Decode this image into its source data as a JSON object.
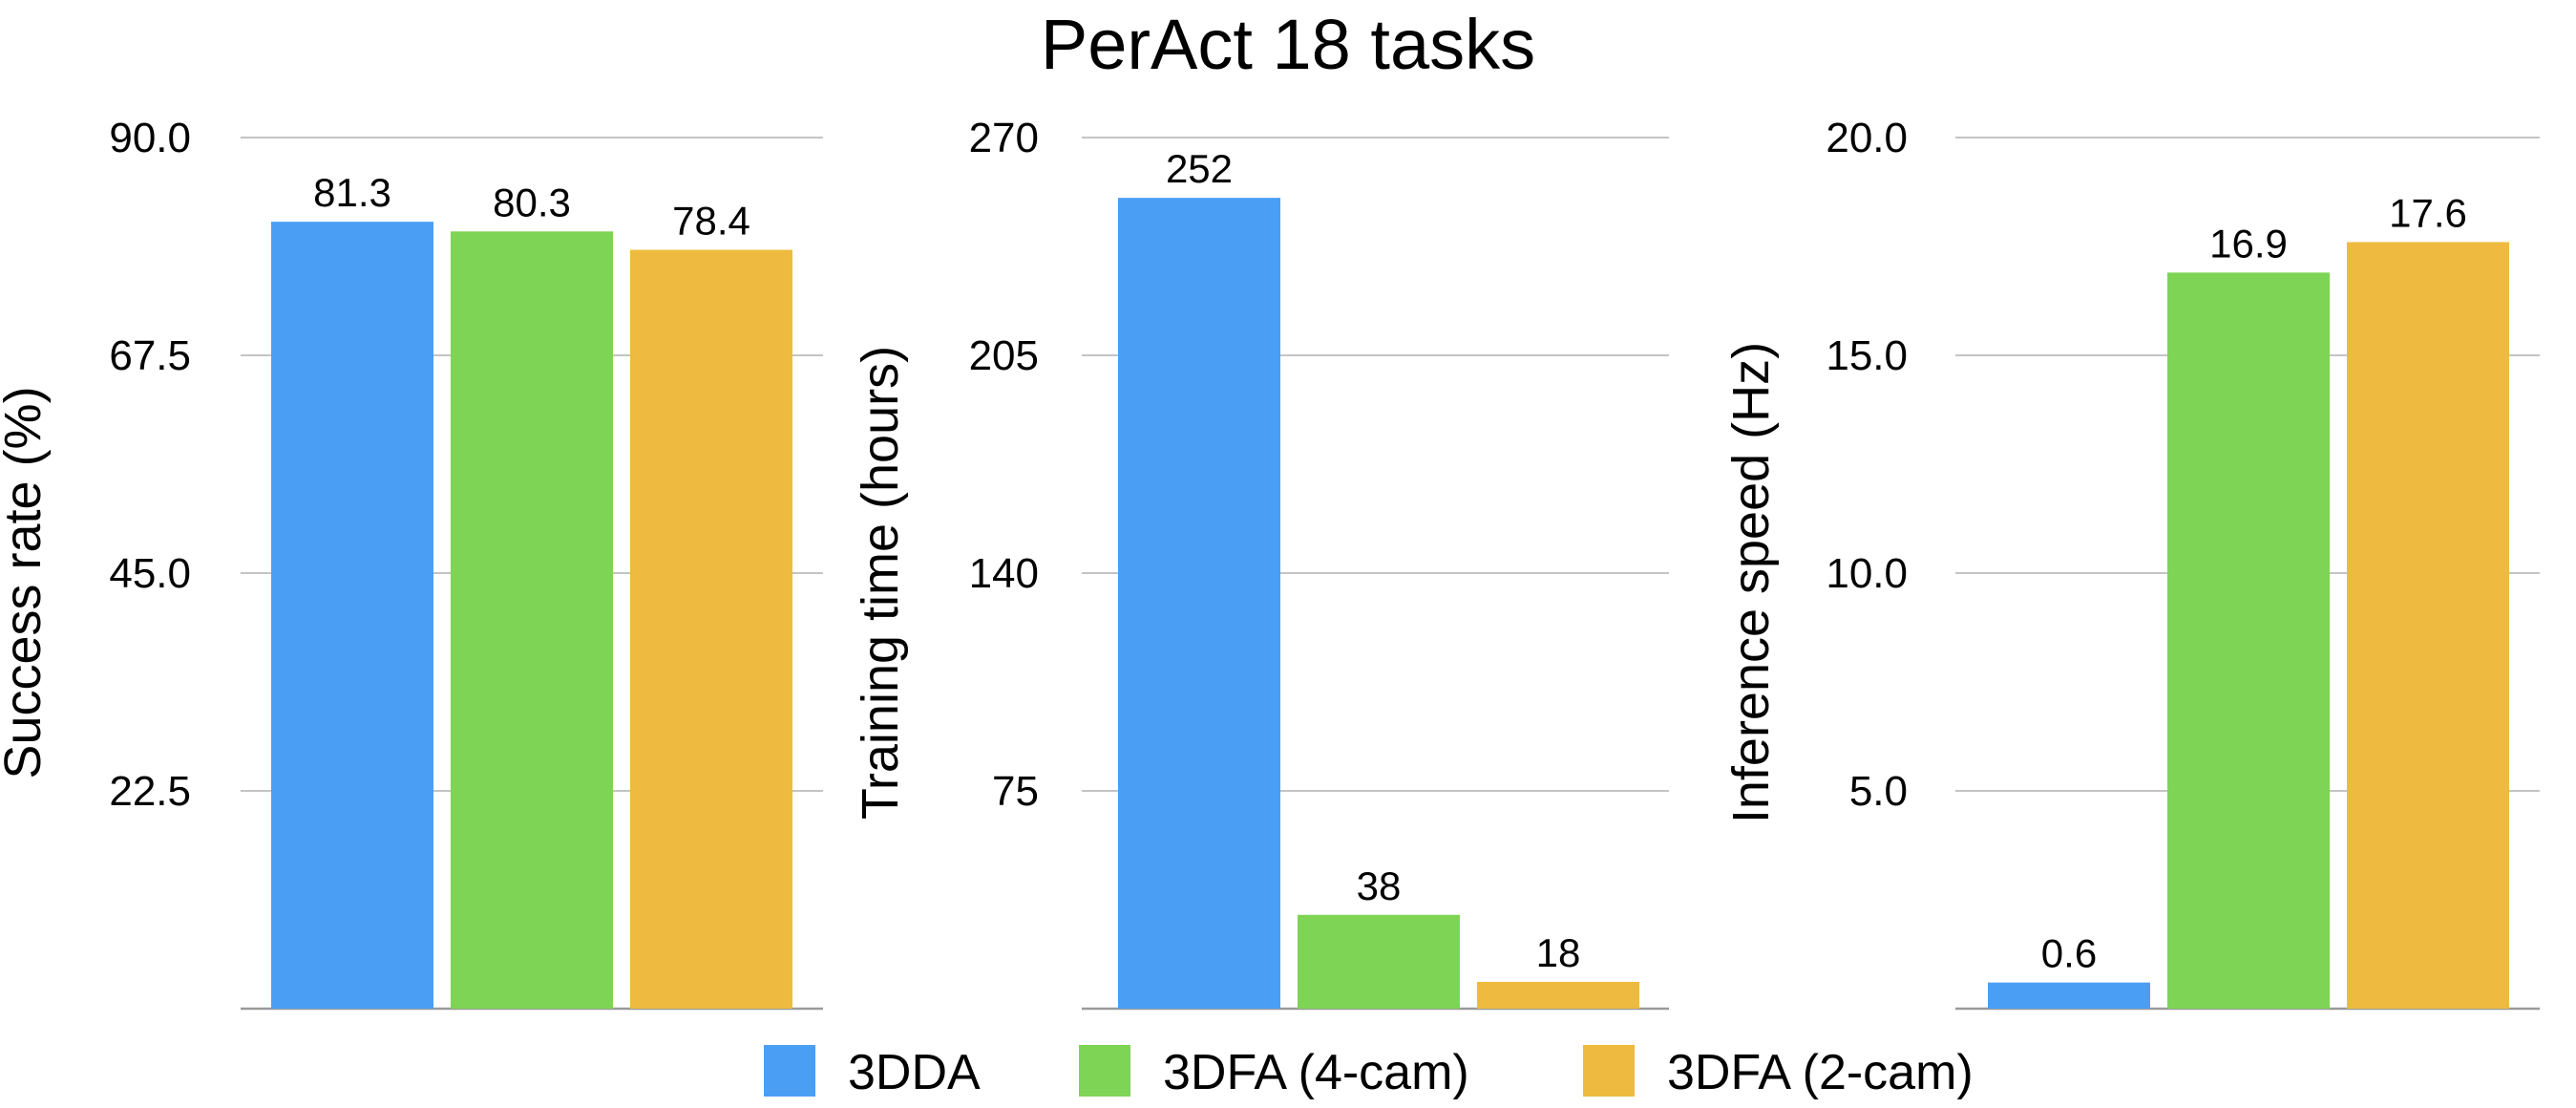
{
  "title": "PerAct 18 tasks",
  "colors": {
    "3DDA": "#4a9ff5",
    "3DFA (4-cam)": "#7ed455",
    "3DFA (2-cam)": "#eebb40",
    "grid": "#c4c4c4",
    "axis": "#9a9a9a"
  },
  "legend": {
    "position": "bottom",
    "items": [
      {
        "name": "3DDA",
        "color": "#4a9ff5"
      },
      {
        "name": "3DFA (4-cam)",
        "color": "#7ed455"
      },
      {
        "name": "3DFA (2-cam)",
        "color": "#eebb40"
      }
    ]
  },
  "chart_data": [
    {
      "type": "bar",
      "ylabel": "Success rate (%)",
      "ylim": [
        0,
        90
      ],
      "yticks": [
        "22.5",
        "45.0",
        "67.5",
        "90.0"
      ],
      "tick_values": [
        22.5,
        45,
        67.5,
        90
      ],
      "categories": [
        "3DDA",
        "3DFA (4-cam)",
        "3DFA (2-cam)"
      ],
      "values": [
        81.3,
        80.3,
        78.4
      ],
      "labels": [
        "81.3",
        "80.3",
        "78.4"
      ],
      "grid": true
    },
    {
      "type": "bar",
      "ylabel": "Training time (hours)",
      "ylim": [
        10,
        270
      ],
      "yticks": [
        "75",
        "140",
        "205",
        "270"
      ],
      "tick_values": [
        75,
        140,
        205,
        270
      ],
      "categories": [
        "3DDA",
        "3DFA (4-cam)",
        "3DFA (2-cam)"
      ],
      "values": [
        252,
        38,
        18
      ],
      "labels": [
        "252",
        "38",
        "18"
      ],
      "grid": true
    },
    {
      "type": "bar",
      "ylabel": "Inference speed (Hz)",
      "ylim": [
        0,
        20
      ],
      "yticks": [
        "5.0",
        "10.0",
        "15.0",
        "20.0"
      ],
      "tick_values": [
        5,
        10,
        15,
        20
      ],
      "categories": [
        "3DDA",
        "3DFA (4-cam)",
        "3DFA (2-cam)"
      ],
      "values": [
        0.6,
        16.9,
        17.6
      ],
      "labels": [
        "0.6",
        "16.9",
        "17.6"
      ],
      "grid": true
    }
  ]
}
